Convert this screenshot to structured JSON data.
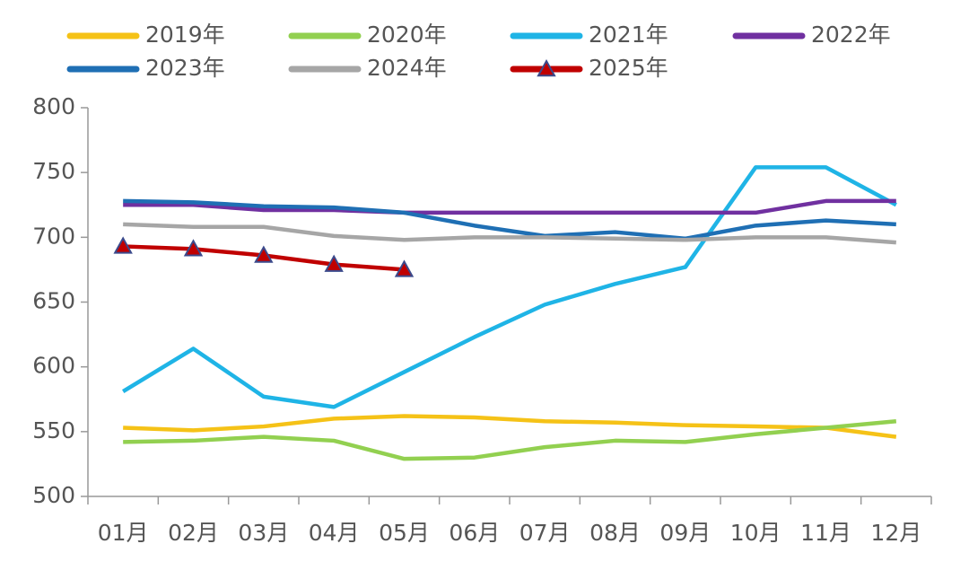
{
  "chart_data": {
    "type": "line",
    "categories": [
      "01月",
      "02月",
      "03月",
      "04月",
      "05月",
      "06月",
      "07月",
      "08月",
      "09月",
      "10月",
      "11月",
      "12月"
    ],
    "series": [
      {
        "name": "2019年",
        "color": "#f5c217",
        "values": [
          553,
          551,
          554,
          560,
          562,
          561,
          558,
          557,
          555,
          554,
          553,
          546
        ]
      },
      {
        "name": "2020年",
        "color": "#92d050",
        "values": [
          542,
          543,
          546,
          543,
          529,
          530,
          538,
          543,
          542,
          548,
          553,
          558
        ]
      },
      {
        "name": "2021年",
        "color": "#1fb4e6",
        "values": [
          581,
          614,
          577,
          569,
          596,
          623,
          648,
          664,
          677,
          754,
          754,
          725
        ]
      },
      {
        "name": "2022年",
        "color": "#7030a0",
        "values": [
          725,
          725,
          721,
          721,
          719,
          719,
          719,
          719,
          719,
          719,
          728,
          728
        ]
      },
      {
        "name": "2023年",
        "color": "#1f6fb4",
        "values": [
          728,
          727,
          724,
          723,
          719,
          709,
          701,
          704,
          699,
          709,
          713,
          710
        ]
      },
      {
        "name": "2024年",
        "color": "#a6a6a6",
        "values": [
          710,
          708,
          708,
          701,
          698,
          700,
          700,
          699,
          698,
          700,
          700,
          696
        ]
      },
      {
        "name": "2025年",
        "color": "#c00000",
        "marker": "triangle",
        "values": [
          693,
          691,
          686,
          679,
          675,
          null,
          null,
          null,
          null,
          null,
          null,
          null
        ]
      }
    ],
    "ylim": [
      500,
      800
    ],
    "yticks": [
      500,
      550,
      600,
      650,
      700,
      750,
      800
    ]
  }
}
